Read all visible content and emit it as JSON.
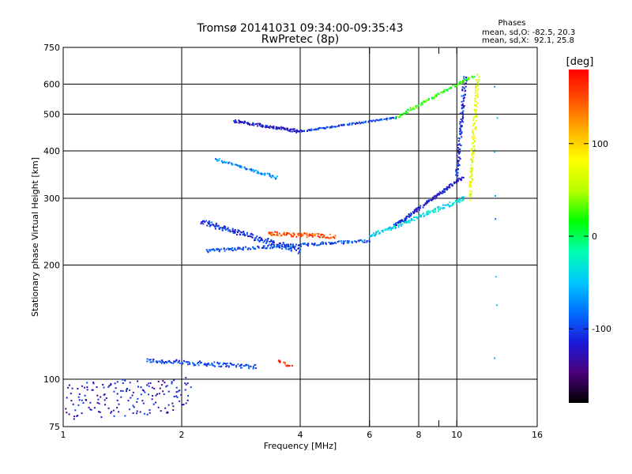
{
  "chart_data": {
    "type": "scatter",
    "title": "Tromsø 20141031 09:34:00-09:35:43",
    "subtitle": "RwPretec (8p)",
    "xlabel": "Frequency [MHz]",
    "ylabel": "Stationary phase Virtual Height [km]",
    "x_scale": "log2",
    "y_scale": "log",
    "xlim": [
      1,
      16
    ],
    "ylim": [
      75,
      750
    ],
    "x_ticks": [
      1,
      2,
      4,
      6,
      8,
      9,
      10,
      16
    ],
    "x_tick_labels": [
      "1",
      "2",
      "4",
      "6",
      "8",
      "",
      "10",
      "16"
    ],
    "x_grid": [
      2,
      4,
      6,
      8,
      10
    ],
    "y_ticks": [
      75,
      100,
      200,
      300,
      400,
      500,
      600,
      750
    ],
    "y_tick_labels": [
      "75",
      "100",
      "200",
      "300",
      "400",
      "500",
      "600",
      "750"
    ],
    "y_grid": [
      100,
      200,
      300,
      400,
      500,
      600
    ],
    "grid": true,
    "phases_box": {
      "title": "Phases",
      "line1": "mean, sd,O: -82.5, 20.3",
      "line2": "mean, sd,X:  92.1, 25.8"
    },
    "colorbar": {
      "label": "[deg]",
      "range": [
        -180,
        180
      ],
      "ticks": [
        100,
        0,
        -100
      ],
      "tick_labels": [
        "100",
        "0",
        "-100"
      ],
      "colormap": [
        "#000000",
        "#4a007a",
        "#1a1ad8",
        "#0070ff",
        "#00c8ff",
        "#00ffb0",
        "#00ff00",
        "#b8ff00",
        "#ffff00",
        "#ffb000",
        "#ff5000",
        "#ff0000"
      ]
    },
    "series": [
      {
        "x0": 1.63,
        "x1": 3.1,
        "y0": 112,
        "y1": 108,
        "phase": -100,
        "jitter": 1.5,
        "n": 120
      },
      {
        "x0": 1.02,
        "x1": 2.1,
        "y0": 88,
        "y1": 92,
        "phase": -120,
        "jitter": 10,
        "n": 170
      },
      {
        "x0": 2.25,
        "x1": 4.0,
        "y0": 260,
        "y1": 218,
        "phase": -105,
        "jitter": 4,
        "n": 170
      },
      {
        "x0": 2.3,
        "x1": 6.0,
        "y0": 218,
        "y1": 232,
        "phase": -95,
        "jitter": 2,
        "n": 170
      },
      {
        "x0": 6.0,
        "x1": 10.5,
        "y0": 238,
        "y1": 300,
        "phase": -40,
        "jitter": 3,
        "n": 150
      },
      {
        "x0": 7.0,
        "x1": 10.3,
        "y0": 255,
        "y1": 340,
        "phase": -115,
        "jitter": 2,
        "n": 140
      },
      {
        "x0": 10.0,
        "x1": 10.5,
        "y0": 340,
        "y1": 630,
        "phase": -110,
        "jitter": 6,
        "n": 110
      },
      {
        "x0": 10.8,
        "x1": 11.3,
        "y0": 300,
        "y1": 630,
        "phase": 70,
        "jitter": 6,
        "n": 120
      },
      {
        "x0": 3.3,
        "x1": 4.9,
        "y0": 242,
        "y1": 238,
        "phase": 150,
        "jitter": 3,
        "n": 90
      },
      {
        "x0": 2.45,
        "x1": 3.5,
        "y0": 380,
        "y1": 340,
        "phase": -70,
        "jitter": 2.5,
        "n": 70
      },
      {
        "x0": 2.7,
        "x1": 4.0,
        "y0": 480,
        "y1": 450,
        "phase": -120,
        "jitter": 4,
        "n": 120
      },
      {
        "x0": 4.0,
        "x1": 7.0,
        "y0": 450,
        "y1": 490,
        "phase": -100,
        "jitter": 2,
        "n": 100
      },
      {
        "x0": 7.0,
        "x1": 11.0,
        "y0": 490,
        "y1": 630,
        "phase": 20,
        "jitter": 3,
        "n": 100
      },
      {
        "x0": 3.5,
        "x1": 3.8,
        "y0": 112,
        "y1": 108,
        "phase": 160,
        "jitter": 1,
        "n": 14
      },
      {
        "x0": 12.5,
        "x1": 12.6,
        "y0": 130,
        "y1": 600,
        "phase": -60,
        "jitter": 20,
        "n": 8
      }
    ]
  }
}
